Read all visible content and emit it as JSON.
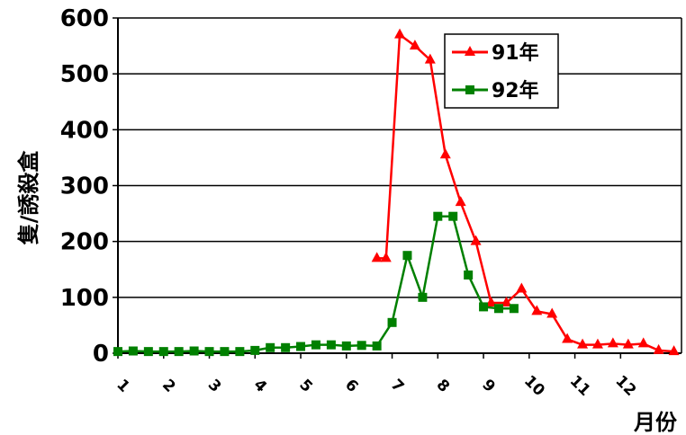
{
  "chart_data": {
    "type": "line",
    "title": "",
    "xlabel": "月份",
    "ylabel": "隻/誘殺盒",
    "ylim": [
      0,
      600
    ],
    "yticks": [
      "0",
      "100",
      "200",
      "300",
      "400",
      "500",
      "600"
    ],
    "xticks": [
      "1",
      "2",
      "3",
      "4",
      "5",
      "6",
      "7",
      "8",
      "9",
      "10",
      "11",
      "12"
    ],
    "xlim": [
      1,
      13.333
    ],
    "grid": "horizontal",
    "legend_position": "top-right",
    "series": [
      {
        "name": "91年",
        "color": "#ff0000",
        "marker": "triangle",
        "x": [
          6.667,
          6.867,
          7.167,
          7.5,
          7.833,
          8.167,
          8.5,
          8.833,
          9.167,
          9.5,
          9.833,
          10.167,
          10.5,
          10.833,
          11.167,
          11.5,
          11.833,
          12.167,
          12.5,
          12.833,
          13.167
        ],
        "y": [
          170,
          170,
          570,
          550,
          525,
          355,
          270,
          200,
          90,
          90,
          115,
          75,
          70,
          25,
          15,
          15,
          17,
          15,
          17,
          5,
          3
        ]
      },
      {
        "name": "92年",
        "color": "#008000",
        "marker": "square",
        "x": [
          1.0,
          1.333,
          1.667,
          2.0,
          2.333,
          2.667,
          3.0,
          3.333,
          3.667,
          4.0,
          4.333,
          4.667,
          5.0,
          5.333,
          5.667,
          6.0,
          6.333,
          6.667,
          7.0,
          7.333,
          7.667,
          8.0,
          8.333,
          8.667,
          9.0,
          9.333,
          9.667
        ],
        "y": [
          3,
          4,
          3,
          3,
          3,
          4,
          3,
          3,
          3,
          5,
          10,
          10,
          12,
          15,
          15,
          13,
          14,
          13,
          55,
          175,
          100,
          245,
          245,
          140,
          83,
          80,
          80
        ]
      }
    ]
  }
}
